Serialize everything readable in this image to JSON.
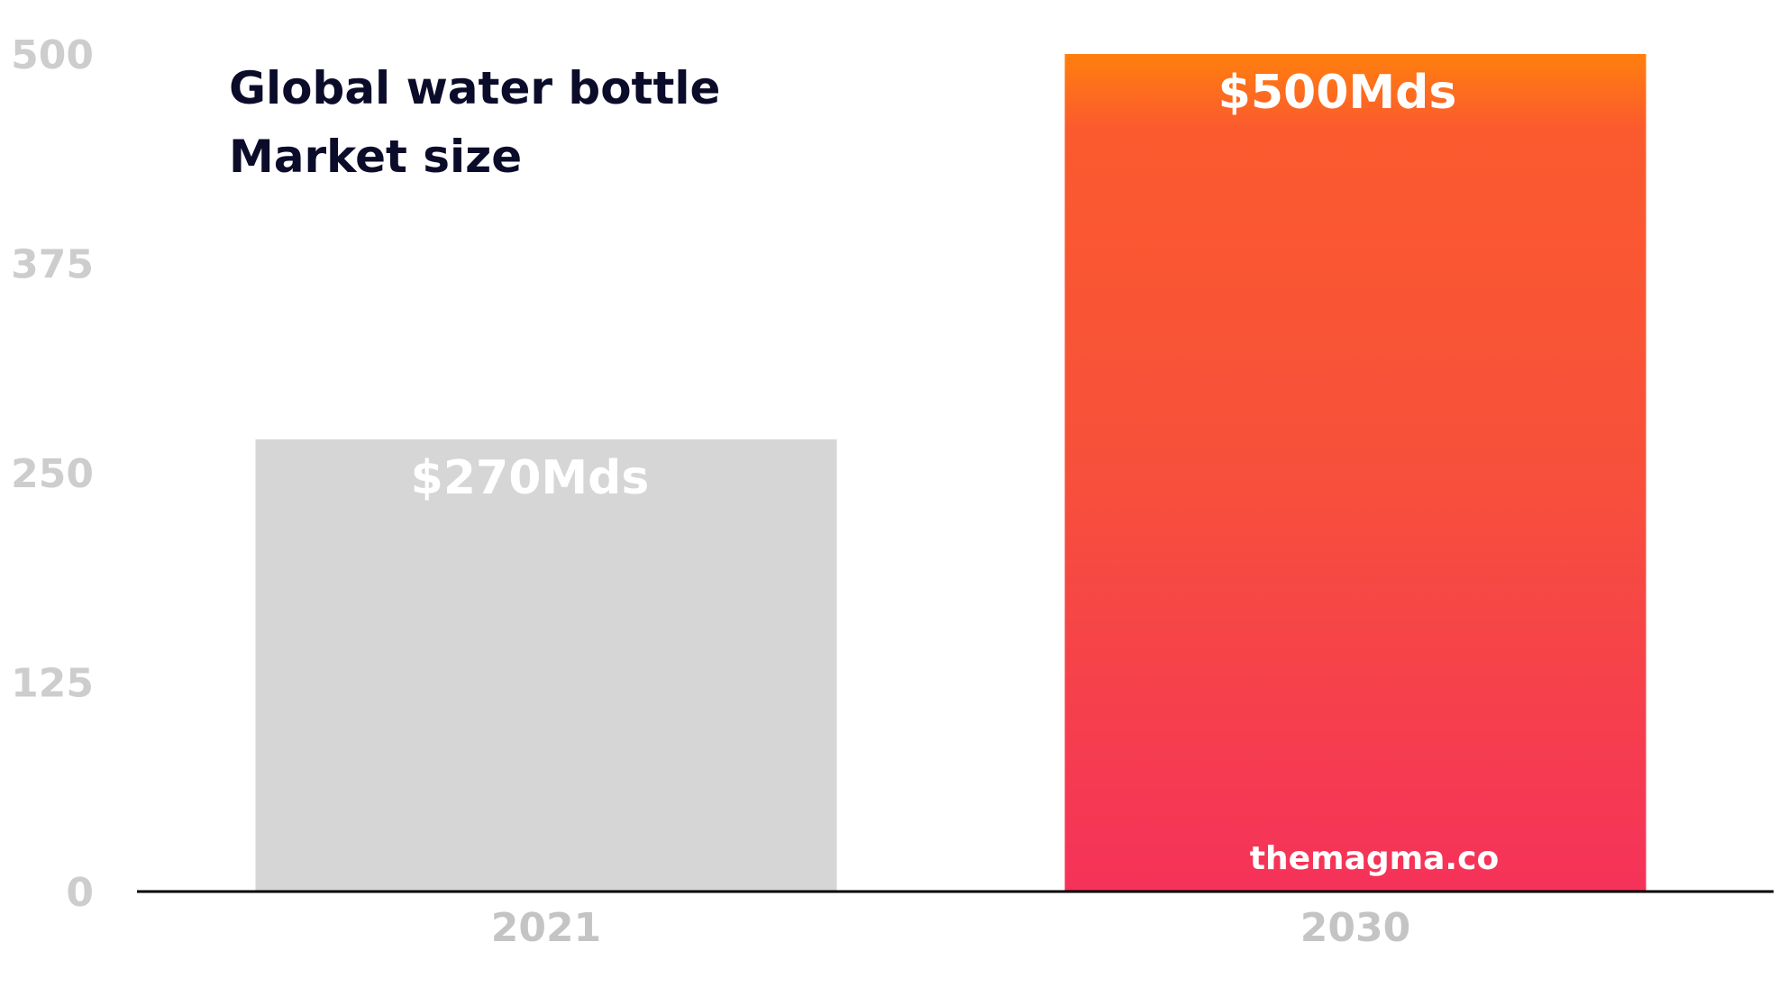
{
  "chart_data": {
    "type": "bar",
    "title_lines": [
      "Global water bottle",
      "Market size"
    ],
    "categories": [
      "2021",
      "2030"
    ],
    "values": [
      270,
      500
    ],
    "data_labels": [
      "$270Mds",
      "$500Mds"
    ],
    "ylim": [
      0,
      500
    ],
    "yticks": [
      "0",
      "125",
      "250",
      "375",
      "500"
    ],
    "grid": false,
    "watermark": "themagma.co",
    "colors": {
      "bar_2021": "#d6d6d6",
      "bar_2030_top": "#ff7f0e",
      "bar_2030_mid": "#f7503b",
      "bar_2030_bottom": "#f5325a",
      "axis": "#000000",
      "tick_text": "#cdcdcd",
      "title_text": "#0b0b2a",
      "label_text": "#ffffff"
    }
  }
}
